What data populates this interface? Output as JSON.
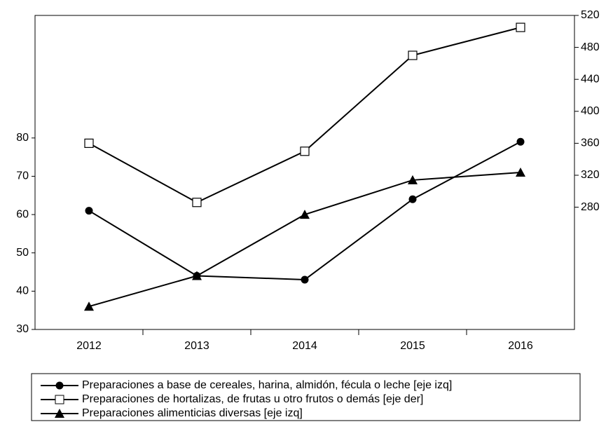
{
  "chart_data": {
    "type": "line",
    "categories": [
      "2012",
      "2013",
      "2014",
      "2015",
      "2016"
    ],
    "series": [
      {
        "name": "Preparaciones a base de cereales, harina, almidón, fécula o leche [eje izq]",
        "color": "#000000",
        "marker": "circle",
        "values": [
          61,
          44,
          43,
          64,
          79
        ]
      },
      {
        "name": "Preparaciones de hortalizas, de frutas u otro frutos o demás [eje der]",
        "color": "#000000",
        "marker": "square",
        "axis": "y2",
        "values": [
          360,
          286,
          350,
          470,
          505
        ]
      },
      {
        "name": "Preparaciones alimenticias diversas [eje izq]",
        "color": "#000000",
        "marker": "triangle",
        "values": [
          36,
          44,
          60,
          69,
          71
        ]
      }
    ],
    "ylim": [
      30,
      112
    ],
    "yticks": [
      30,
      40,
      50,
      60,
      70,
      80
    ],
    "y2lim": [
      127,
      520
    ],
    "y2ticks": [
      280,
      320,
      360,
      400,
      440,
      480,
      520
    ],
    "legend": "bottom"
  }
}
